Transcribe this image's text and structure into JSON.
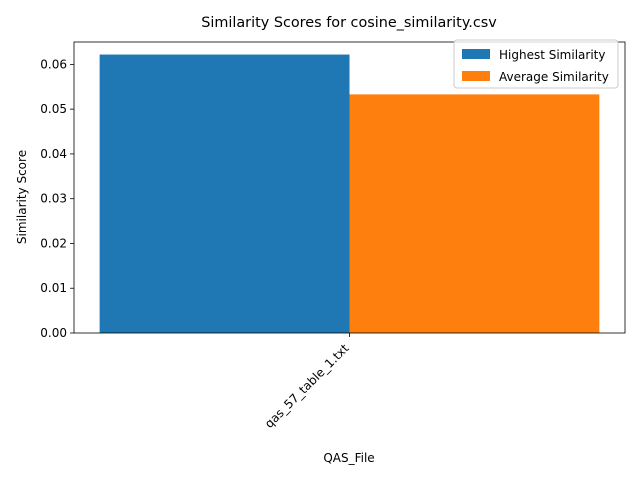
{
  "chart_data": {
    "type": "bar",
    "title": "Similarity Scores for cosine_similarity.csv",
    "xlabel": "QAS_File",
    "ylabel": "Similarity Score",
    "categories": [
      "qas_57_table_1.txt"
    ],
    "series": [
      {
        "name": "Highest Similarity",
        "values": [
          0.0622
        ],
        "color": "#1f77b4"
      },
      {
        "name": "Average Similarity",
        "values": [
          0.0533
        ],
        "color": "#ff7f0e"
      }
    ],
    "ylim": [
      0,
      0.065
    ],
    "yticks": [
      0.0,
      0.01,
      0.02,
      0.03,
      0.04,
      0.05,
      0.06
    ],
    "ytick_labels": [
      "0.00",
      "0.01",
      "0.02",
      "0.03",
      "0.04",
      "0.05",
      "0.06"
    ],
    "grid": false,
    "legend_position": "top-right"
  }
}
